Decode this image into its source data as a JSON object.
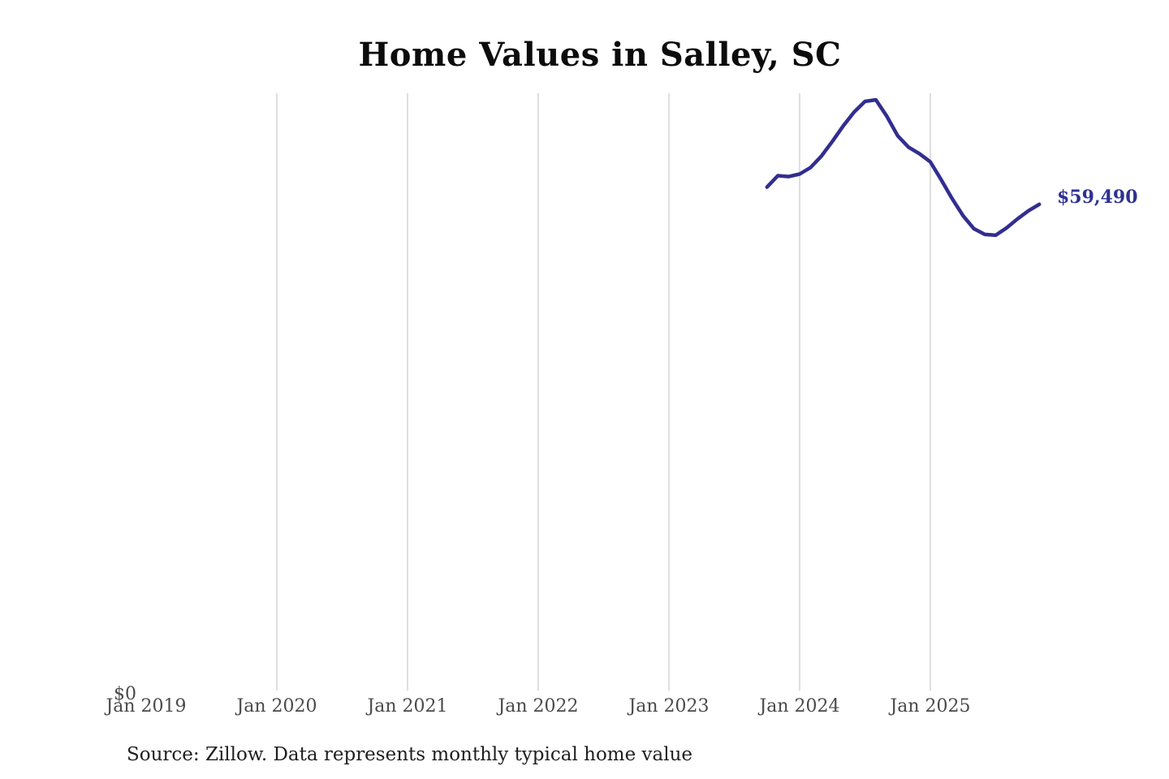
{
  "chart_data": {
    "type": "line",
    "title": "Home Values in Salley, SC",
    "source_note": "Source: Zillow. Data represents monthly typical home value",
    "end_label": "$59,490",
    "y_zero_label": "$0",
    "ylabel": "",
    "xlabel": "",
    "ylim": [
      0,
      73000
    ],
    "grid": "vertical-only",
    "legend_position": "none",
    "x_ticks": [
      {
        "label": "Jan 2019",
        "date": "2019-01",
        "gridline": false
      },
      {
        "label": "Jan 2020",
        "date": "2020-01",
        "gridline": true
      },
      {
        "label": "Jan 2021",
        "date": "2021-01",
        "gridline": true
      },
      {
        "label": "Jan 2022",
        "date": "2022-01",
        "gridline": true
      },
      {
        "label": "Jan 2023",
        "date": "2023-01",
        "gridline": true
      },
      {
        "label": "Jan 2024",
        "date": "2024-01",
        "gridline": true
      },
      {
        "label": "Jan 2025",
        "date": "2025-01",
        "gridline": true
      }
    ],
    "series": [
      {
        "name": "Monthly typical home value",
        "points": [
          {
            "date": "2023-10",
            "value": 61600
          },
          {
            "date": "2023-11",
            "value": 63000
          },
          {
            "date": "2023-12",
            "value": 62900
          },
          {
            "date": "2024-01",
            "value": 63200
          },
          {
            "date": "2024-02",
            "value": 64000
          },
          {
            "date": "2024-03",
            "value": 65400
          },
          {
            "date": "2024-04",
            "value": 67200
          },
          {
            "date": "2024-05",
            "value": 69100
          },
          {
            "date": "2024-06",
            "value": 70800
          },
          {
            "date": "2024-07",
            "value": 72100
          },
          {
            "date": "2024-08",
            "value": 72300
          },
          {
            "date": "2024-09",
            "value": 70300
          },
          {
            "date": "2024-10",
            "value": 67900
          },
          {
            "date": "2024-11",
            "value": 66500
          },
          {
            "date": "2024-12",
            "value": 65700
          },
          {
            "date": "2025-01",
            "value": 64700
          },
          {
            "date": "2025-02",
            "value": 62500
          },
          {
            "date": "2025-03",
            "value": 60200
          },
          {
            "date": "2025-04",
            "value": 58100
          },
          {
            "date": "2025-05",
            "value": 56500
          },
          {
            "date": "2025-06",
            "value": 55800
          },
          {
            "date": "2025-07",
            "value": 55700
          },
          {
            "date": "2025-08",
            "value": 56600
          },
          {
            "date": "2025-09",
            "value": 57700
          },
          {
            "date": "2025-10",
            "value": 58700
          },
          {
            "date": "2025-11",
            "value": 59490
          }
        ]
      }
    ],
    "colors": {
      "line": "#322e90",
      "end_label": "#2d3192",
      "gridline": "#cccccc",
      "axis_label": "#4a4a4a",
      "title": "#0c0c0c",
      "source": "#1f1f1f",
      "background": "#ffffff"
    }
  }
}
